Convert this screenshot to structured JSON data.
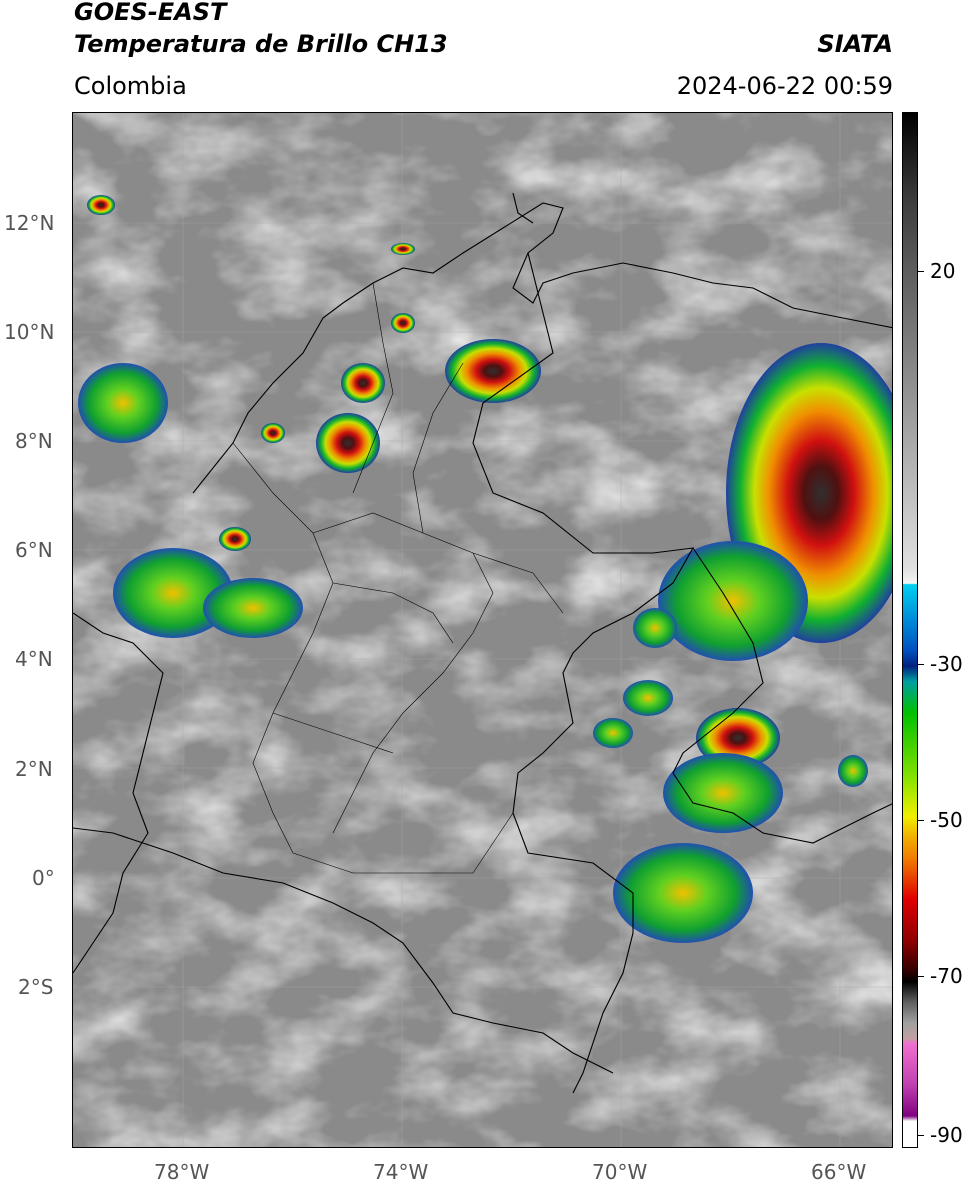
{
  "header": {
    "satellite": "GOES-EAST",
    "product": "Temperatura de Brillo CH13",
    "region": "Colombia",
    "agency": "SIATA",
    "datetime": "2024-06-22 00:59"
  },
  "axes": {
    "lat_labels": [
      "12°N",
      "10°N",
      "8°N",
      "6°N",
      "4°N",
      "2°N",
      "0°",
      "2°S"
    ],
    "lon_labels": [
      "78°W",
      "74°W",
      "70°W",
      "66°W"
    ]
  },
  "colorbar": {
    "labels": [
      "20",
      "-30",
      "-50",
      "-70",
      "-90"
    ],
    "colors": [
      "#000000",
      "#707070",
      "#d8d8d8",
      "#00c8f0",
      "#003090",
      "#00c800",
      "#f0f000",
      "#f08000",
      "#d00000",
      "#300000",
      "#c0c0c0",
      "#e060c0",
      "#800080",
      "#ffffff"
    ]
  },
  "map": {
    "background": "#8a8a8a",
    "convective_colors": [
      "#2040a0",
      "#10b030",
      "#c8e000",
      "#f09000",
      "#d01010",
      "#501010",
      "#505050"
    ]
  }
}
